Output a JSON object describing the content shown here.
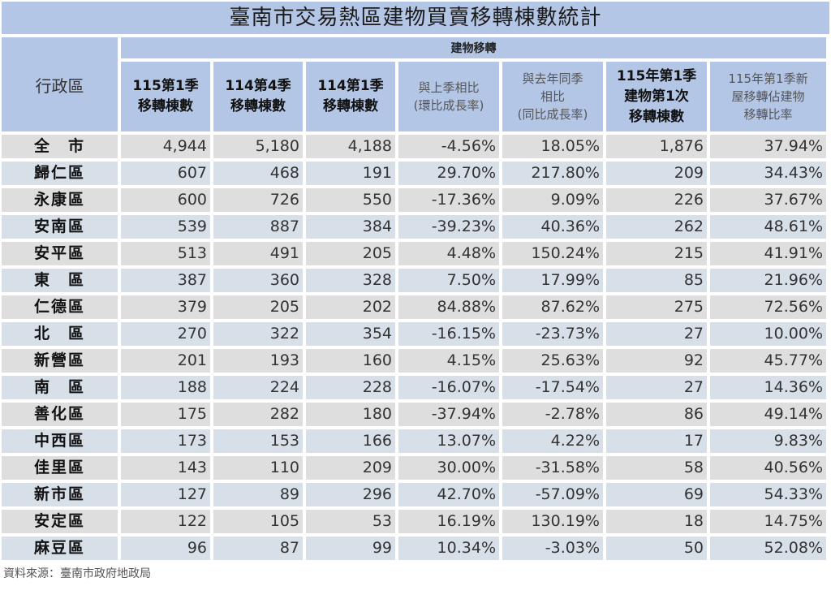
{
  "title": "臺南市交易熱區建物買賣移轉棟數統計",
  "header": {
    "district_label": "行政區",
    "group_label": "建物移轉",
    "columns": [
      {
        "line1": "115第1季",
        "line2": "移轉棟數",
        "line3": ""
      },
      {
        "line1": "114第4季",
        "line2": "移轉棟數",
        "line3": ""
      },
      {
        "line1": "114第1季",
        "line2": "移轉棟數",
        "line3": ""
      },
      {
        "line1": "與上季相比",
        "line2": "(環比成長率)",
        "line3": ""
      },
      {
        "line1": "與去年同季",
        "line2": "相比",
        "line3": "(同比成長率)"
      },
      {
        "line1": "115年第1季",
        "line2": "建物第1次",
        "line3": "移轉棟數"
      },
      {
        "line1": "115年第1季新",
        "line2": "屋移轉佔建物",
        "line3": "移轉比率"
      }
    ]
  },
  "rows": [
    {
      "district": "全　市",
      "q1_115": "4,944",
      "q4_114": "5,180",
      "q1_114": "4,188",
      "qoq": "-4.56%",
      "yoy": "18.05%",
      "first_transfer": "1,876",
      "new_ratio": "37.94%"
    },
    {
      "district": "歸仁區",
      "q1_115": "607",
      "q4_114": "468",
      "q1_114": "191",
      "qoq": "29.70%",
      "yoy": "217.80%",
      "first_transfer": "209",
      "new_ratio": "34.43%"
    },
    {
      "district": "永康區",
      "q1_115": "600",
      "q4_114": "726",
      "q1_114": "550",
      "qoq": "-17.36%",
      "yoy": "9.09%",
      "first_transfer": "226",
      "new_ratio": "37.67%"
    },
    {
      "district": "安南區",
      "q1_115": "539",
      "q4_114": "887",
      "q1_114": "384",
      "qoq": "-39.23%",
      "yoy": "40.36%",
      "first_transfer": "262",
      "new_ratio": "48.61%"
    },
    {
      "district": "安平區",
      "q1_115": "513",
      "q4_114": "491",
      "q1_114": "205",
      "qoq": "4.48%",
      "yoy": "150.24%",
      "first_transfer": "215",
      "new_ratio": "41.91%"
    },
    {
      "district": "東　區",
      "q1_115": "387",
      "q4_114": "360",
      "q1_114": "328",
      "qoq": "7.50%",
      "yoy": "17.99%",
      "first_transfer": "85",
      "new_ratio": "21.96%"
    },
    {
      "district": "仁德區",
      "q1_115": "379",
      "q4_114": "205",
      "q1_114": "202",
      "qoq": "84.88%",
      "yoy": "87.62%",
      "first_transfer": "275",
      "new_ratio": "72.56%"
    },
    {
      "district": "北　區",
      "q1_115": "270",
      "q4_114": "322",
      "q1_114": "354",
      "qoq": "-16.15%",
      "yoy": "-23.73%",
      "first_transfer": "27",
      "new_ratio": "10.00%"
    },
    {
      "district": "新營區",
      "q1_115": "201",
      "q4_114": "193",
      "q1_114": "160",
      "qoq": "4.15%",
      "yoy": "25.63%",
      "first_transfer": "92",
      "new_ratio": "45.77%"
    },
    {
      "district": "南　區",
      "q1_115": "188",
      "q4_114": "224",
      "q1_114": "228",
      "qoq": "-16.07%",
      "yoy": "-17.54%",
      "first_transfer": "27",
      "new_ratio": "14.36%"
    },
    {
      "district": "善化區",
      "q1_115": "175",
      "q4_114": "282",
      "q1_114": "180",
      "qoq": "-37.94%",
      "yoy": "-2.78%",
      "first_transfer": "86",
      "new_ratio": "49.14%"
    },
    {
      "district": "中西區",
      "q1_115": "173",
      "q4_114": "153",
      "q1_114": "166",
      "qoq": "13.07%",
      "yoy": "4.22%",
      "first_transfer": "17",
      "new_ratio": "9.83%"
    },
    {
      "district": "佳里區",
      "q1_115": "143",
      "q4_114": "110",
      "q1_114": "209",
      "qoq": "30.00%",
      "yoy": "-31.58%",
      "first_transfer": "58",
      "new_ratio": "40.56%"
    },
    {
      "district": "新市區",
      "q1_115": "127",
      "q4_114": "89",
      "q1_114": "296",
      "qoq": "42.70%",
      "yoy": "-57.09%",
      "first_transfer": "69",
      "new_ratio": "54.33%"
    },
    {
      "district": "安定區",
      "q1_115": "122",
      "q4_114": "105",
      "q1_114": "53",
      "qoq": "16.19%",
      "yoy": "130.19%",
      "first_transfer": "18",
      "new_ratio": "14.75%"
    },
    {
      "district": "麻豆區",
      "q1_115": "96",
      "q4_114": "87",
      "q1_114": "99",
      "qoq": "10.34%",
      "yoy": "-3.03%",
      "first_transfer": "50",
      "new_ratio": "52.08%"
    }
  ],
  "footer": "資料來源：臺南市政府地政局",
  "colors": {
    "header_bg": "#b4c6e6",
    "row_gray": "#dedede",
    "row_blue": "#d7dfe9"
  }
}
